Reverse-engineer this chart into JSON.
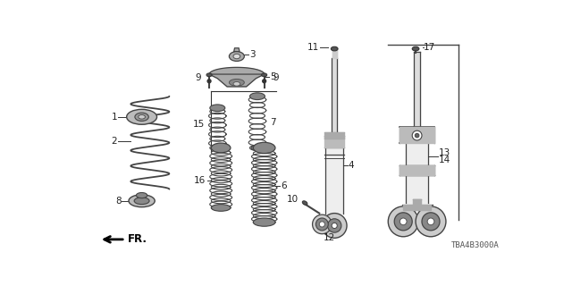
{
  "bg_color": "#ffffff",
  "line_color": "#222222",
  "diagram_code": "TBA4B3000A",
  "lc": "#333333",
  "gray_fill": "#888888",
  "dark_fill": "#555555"
}
